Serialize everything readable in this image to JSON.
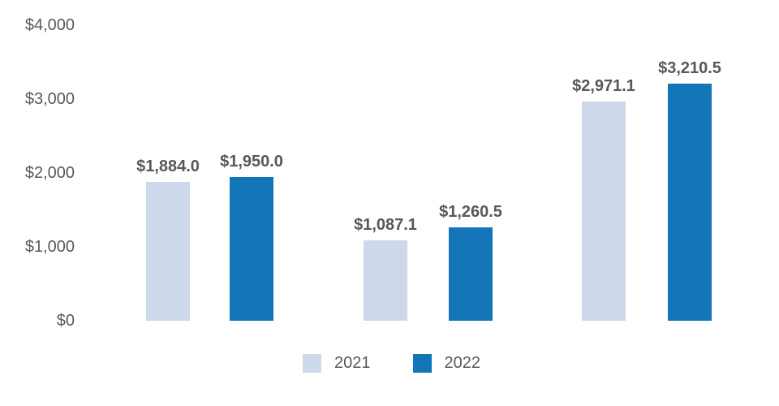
{
  "colors": {
    "background": "#ffffff",
    "series_2021": "#cdd8ea",
    "series_2022": "#1276b8",
    "axis_text": "#595959",
    "value_label_text": "#58585a",
    "legend_text": "#595959"
  },
  "chart_data": {
    "type": "bar",
    "title": "",
    "group_count": 3,
    "series": [
      {
        "name": "2021",
        "color": "#cdd8ea",
        "values": [
          1884.0,
          1087.1,
          2971.1
        ],
        "data_labels": [
          "$1,884.0",
          "$1,087.1",
          "$2,971.1"
        ]
      },
      {
        "name": "2022",
        "color": "#1276b8",
        "values": [
          1950.0,
          1260.5,
          3210.5
        ],
        "data_labels": [
          "$1,950.0",
          "$1,260.5",
          "$3,210.5"
        ]
      }
    ],
    "ylim": [
      0,
      4000
    ],
    "y_ticks": [
      {
        "value": 0,
        "label": "$0"
      },
      {
        "value": 1000,
        "label": "$1,000"
      },
      {
        "value": 2000,
        "label": "$2,000"
      },
      {
        "value": 3000,
        "label": "$3,000"
      },
      {
        "value": 4000,
        "label": "$4,000"
      }
    ],
    "grid": false,
    "axis_lines": false,
    "legend": {
      "position": "bottom",
      "entries": [
        "2021",
        "2022"
      ]
    }
  }
}
